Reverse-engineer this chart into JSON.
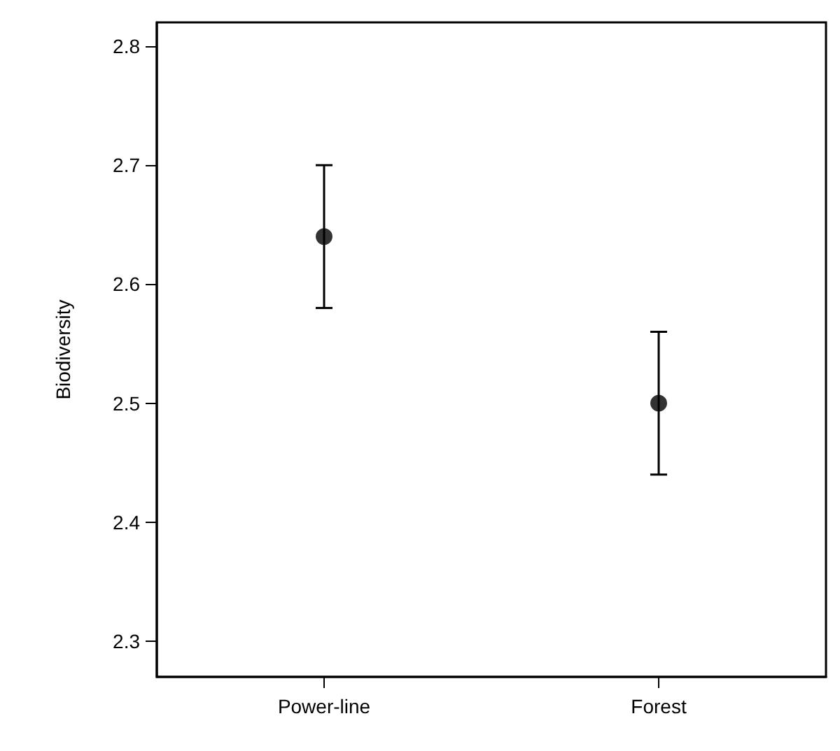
{
  "chart_data": {
    "type": "scatter",
    "ylabel": "Biodiversity",
    "categories": [
      "Power-line",
      "Forest"
    ],
    "series": [
      {
        "color": "#000000",
        "values": [
          2.64,
          2.5
        ],
        "errors": [
          [
            2.58,
            2.7
          ],
          [
            2.44,
            2.56
          ]
        ]
      }
    ],
    "ylim": [
      2.27,
      2.82
    ],
    "yticks": [
      2.3,
      2.4,
      2.5,
      2.6,
      2.7,
      2.8
    ],
    "marker": "circle",
    "grid": false
  }
}
